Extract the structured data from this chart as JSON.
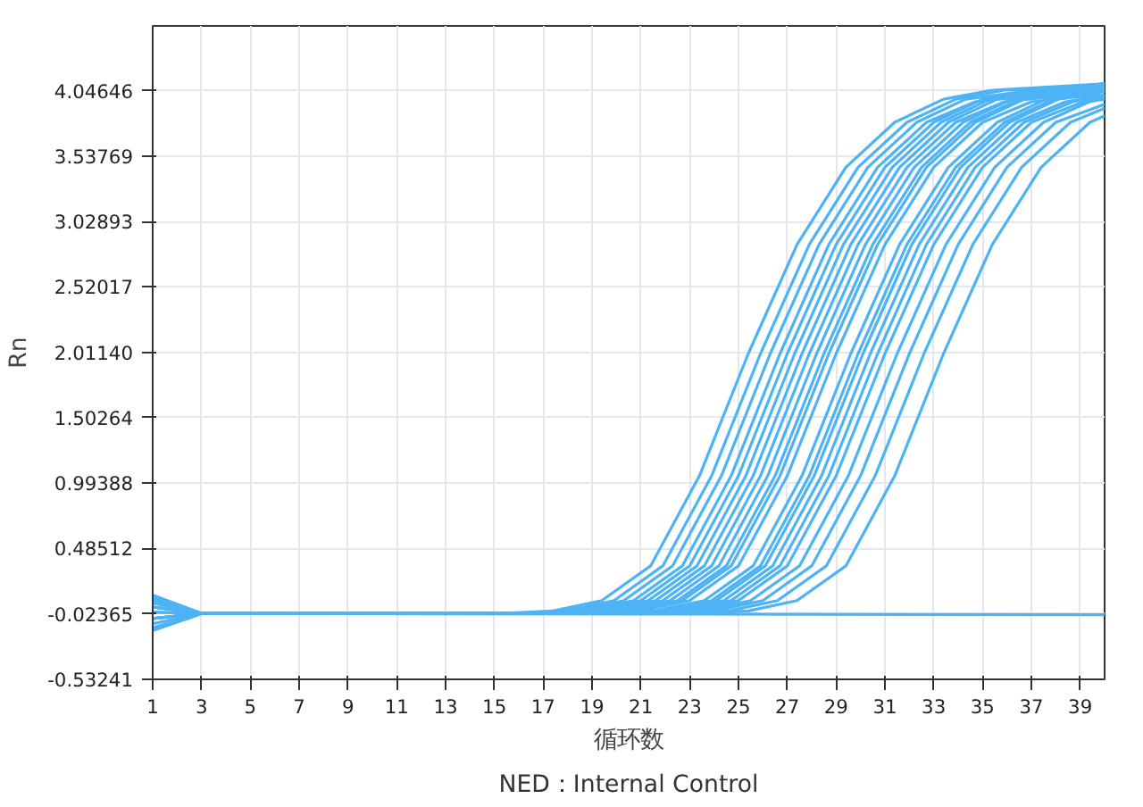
{
  "chart_data": {
    "type": "line",
    "xlabel": "循环数",
    "ylabel": "Rn",
    "annotations": [
      "NED：Internal Control"
    ],
    "xlim": [
      1,
      40
    ],
    "ylim": [
      -0.53241,
      4.55
    ],
    "xticks": [
      1,
      3,
      5,
      7,
      9,
      11,
      13,
      15,
      17,
      19,
      21,
      23,
      25,
      27,
      29,
      31,
      33,
      35,
      37,
      39
    ],
    "yticks": [
      -0.53241,
      -0.02365,
      0.48512,
      0.99388,
      1.50264,
      {
        "value": 2.0114,
        "label": "2.01140"
      },
      2.52017,
      3.02893,
      3.53769,
      4.04646
    ],
    "grid": true,
    "marker": "none",
    "line_style": "solid",
    "series": [
      {
        "color": "#4db3f5",
        "x": [
          1,
          3,
          15.4,
          17.4,
          19.4,
          21.4,
          23.4,
          25.4,
          27.4,
          29.4,
          31.4,
          33.4,
          35.4,
          40
        ],
        "values": [
          0.12,
          -0.02,
          -0.02,
          0.0,
          0.08,
          0.35,
          1.05,
          2.0,
          2.85,
          3.45,
          3.8,
          3.98,
          4.05,
          4.1
        ]
      },
      {
        "color": "#4db3f5",
        "x": [
          1,
          3,
          15.9,
          17.9,
          19.9,
          21.9,
          23.9,
          25.9,
          27.9,
          29.9,
          31.9,
          33.9,
          35.9,
          40
        ],
        "values": [
          0.12,
          -0.02,
          -0.02,
          0.0,
          0.08,
          0.35,
          1.05,
          2.0,
          2.85,
          3.45,
          3.8,
          3.98,
          4.05,
          4.07
        ]
      },
      {
        "color": "#4db3f5",
        "x": [
          1,
          3,
          16.3,
          18.3,
          20.3,
          22.3,
          24.3,
          26.3,
          28.3,
          30.3,
          32.3,
          34.3,
          36.3,
          40
        ],
        "values": [
          0.12,
          -0.02,
          -0.02,
          0.0,
          0.08,
          0.35,
          1.05,
          2.0,
          2.85,
          3.45,
          3.8,
          3.98,
          4.03,
          4.04
        ]
      },
      {
        "color": "#4db3f5",
        "x": [
          1,
          3,
          16.7,
          18.7,
          20.7,
          22.7,
          24.7,
          26.7,
          28.7,
          30.7,
          32.7,
          34.7,
          36.7,
          40
        ],
        "values": [
          0.12,
          -0.02,
          -0.02,
          0.0,
          0.08,
          0.35,
          1.05,
          2.0,
          2.85,
          3.45,
          3.8,
          3.96,
          4.0,
          4.01
        ]
      },
      {
        "color": "#4db3f5",
        "x": [
          1,
          3,
          17.0,
          19.0,
          21.0,
          23.0,
          25.0,
          27.0,
          29.0,
          31.0,
          33.0,
          35.0,
          37.0,
          40
        ],
        "values": [
          0.03,
          -0.02,
          -0.02,
          0.0,
          0.08,
          0.35,
          1.05,
          2.0,
          2.85,
          3.45,
          3.8,
          3.98,
          4.05,
          4.1
        ]
      },
      {
        "color": "#4db3f5",
        "x": [
          1,
          3,
          17.3,
          19.3,
          21.3,
          23.3,
          25.3,
          27.3,
          29.3,
          31.3,
          33.3,
          35.3,
          37.3,
          40
        ],
        "values": [
          0.03,
          -0.02,
          -0.02,
          0.0,
          0.08,
          0.35,
          1.05,
          2.0,
          2.85,
          3.45,
          3.8,
          3.98,
          4.05,
          4.07
        ]
      },
      {
        "color": "#4db3f5",
        "x": [
          1,
          3,
          17.6,
          19.6,
          21.6,
          23.6,
          25.6,
          27.6,
          29.6,
          31.6,
          33.6,
          35.6,
          37.6,
          40
        ],
        "values": [
          0.03,
          -0.02,
          -0.02,
          0.0,
          0.08,
          0.35,
          1.05,
          2.0,
          2.85,
          3.45,
          3.8,
          3.98,
          4.03,
          4.04
        ]
      },
      {
        "color": "#4db3f5",
        "x": [
          1,
          3,
          17.9,
          19.9,
          21.9,
          23.9,
          25.9,
          27.9,
          29.9,
          31.9,
          33.9,
          35.9,
          37.9,
          40
        ],
        "values": [
          0.03,
          -0.02,
          -0.02,
          0.0,
          0.08,
          0.35,
          1.05,
          2.0,
          2.85,
          3.45,
          3.8,
          3.96,
          4.0,
          4.01
        ]
      },
      {
        "color": "#4db3f5",
        "x": [
          1,
          3,
          18.2,
          20.2,
          22.2,
          24.2,
          26.2,
          28.2,
          30.2,
          32.2,
          34.2,
          36.2,
          38.2,
          40
        ],
        "values": [
          -0.06,
          -0.02,
          -0.02,
          0.0,
          0.08,
          0.35,
          1.05,
          2.0,
          2.85,
          3.45,
          3.8,
          3.98,
          4.05,
          4.1
        ]
      },
      {
        "color": "#4db3f5",
        "x": [
          1,
          3,
          18.5,
          20.5,
          22.5,
          24.5,
          26.5,
          28.5,
          30.5,
          32.5,
          34.5,
          36.5,
          38.5,
          40
        ],
        "values": [
          -0.06,
          -0.02,
          -0.02,
          0.0,
          0.08,
          0.35,
          1.05,
          2.0,
          2.85,
          3.45,
          3.8,
          3.98,
          4.05,
          4.07
        ]
      },
      {
        "color": "#4db3f5",
        "x": [
          1,
          3,
          18.7,
          20.7,
          22.7,
          24.7,
          26.7,
          28.7,
          30.7,
          32.7,
          34.7,
          36.7,
          38.7,
          40
        ],
        "values": [
          -0.06,
          -0.02,
          -0.02,
          0.0,
          0.08,
          0.35,
          1.05,
          2.0,
          2.85,
          3.45,
          3.8,
          3.98,
          4.03,
          4.04
        ]
      },
      {
        "color": "#4db3f5",
        "x": [
          1,
          3,
          19.0,
          21.0,
          23.0,
          25.0,
          27.0,
          29.0,
          31.0,
          33.0,
          35.0,
          37.0,
          39.0,
          40
        ],
        "values": [
          -0.06,
          -0.02,
          -0.02,
          0.0,
          0.08,
          0.35,
          1.05,
          2.0,
          2.85,
          3.45,
          3.8,
          3.96,
          4.0,
          4.01
        ]
      },
      {
        "color": "#4db3f5",
        "x": [
          1,
          3,
          19.6,
          21.6,
          23.6,
          25.6,
          27.6,
          29.6,
          31.6,
          33.6,
          35.6,
          37.6,
          39.6,
          40
        ],
        "values": [
          -0.15,
          -0.02,
          -0.02,
          0.0,
          0.08,
          0.35,
          1.05,
          2.0,
          2.85,
          3.45,
          3.8,
          3.98,
          4.08,
          4.1
        ]
      },
      {
        "color": "#4db3f5",
        "x": [
          1,
          3,
          19.9,
          21.9,
          23.9,
          25.9,
          27.9,
          29.9,
          31.9,
          33.9,
          35.9,
          37.9,
          39.9,
          40
        ],
        "values": [
          -0.15,
          -0.02,
          -0.02,
          0.0,
          0.08,
          0.35,
          1.05,
          2.0,
          2.85,
          3.45,
          3.8,
          3.98,
          4.06,
          4.07
        ]
      },
      {
        "color": "#4db3f5",
        "x": [
          1,
          3,
          20.1,
          22.1,
          24.1,
          26.1,
          28.1,
          30.1,
          32.1,
          34.1,
          36.1,
          38.1,
          40
        ],
        "values": [
          -0.15,
          -0.02,
          -0.02,
          0.0,
          0.08,
          0.35,
          1.05,
          2.0,
          2.85,
          3.45,
          3.8,
          3.98,
          4.04
        ]
      },
      {
        "color": "#4db3f5",
        "x": [
          1,
          3,
          20.4,
          22.4,
          24.4,
          26.4,
          28.4,
          30.4,
          32.4,
          34.4,
          36.4,
          38.4,
          40
        ],
        "values": [
          -0.15,
          -0.02,
          -0.02,
          0.0,
          0.08,
          0.35,
          1.05,
          2.0,
          2.85,
          3.45,
          3.8,
          3.96,
          4.01
        ]
      },
      {
        "color": "#4db3f5",
        "x": [
          1,
          3,
          20.7,
          22.7,
          24.7,
          26.7,
          28.7,
          30.7,
          32.7,
          34.7,
          36.7,
          38.7,
          40
        ],
        "values": [
          0.08,
          -0.02,
          -0.02,
          0.0,
          0.08,
          0.35,
          1.05,
          2.0,
          2.85,
          3.45,
          3.8,
          3.96,
          4.0
        ]
      },
      {
        "color": "#4db3f5",
        "x": [
          1,
          3,
          21.0,
          23.0,
          25.0,
          27.0,
          29.0,
          31.0,
          33.0,
          35.0,
          37.0,
          39.0,
          40
        ],
        "values": [
          -0.1,
          -0.02,
          -0.02,
          0.0,
          0.08,
          0.35,
          1.05,
          2.0,
          2.85,
          3.45,
          3.8,
          3.95,
          3.98
        ]
      },
      {
        "color": "#4db3f5",
        "x": [
          1,
          3,
          21.5,
          23.5,
          25.5,
          27.5,
          29.5,
          31.5,
          33.5,
          35.5,
          37.5,
          39.5,
          40
        ],
        "values": [
          -0.01,
          -0.02,
          -0.02,
          0.0,
          0.08,
          0.35,
          1.05,
          2.0,
          2.85,
          3.45,
          3.8,
          3.97,
          3.99
        ]
      },
      {
        "color": "#4db3f5",
        "x": [
          1,
          3,
          22.0,
          24.0,
          26.0,
          28.0,
          30.0,
          32.0,
          34.0,
          36.0,
          38.0,
          40.0
        ],
        "values": [
          0.1,
          -0.02,
          -0.02,
          0.0,
          0.08,
          0.35,
          1.05,
          2.0,
          2.85,
          3.45,
          3.8,
          3.94
        ]
      },
      {
        "color": "#4db3f5",
        "x": [
          1,
          3,
          22.6,
          24.6,
          26.6,
          28.6,
          30.6,
          32.6,
          34.6,
          36.6,
          38.6,
          40
        ],
        "values": [
          -0.13,
          -0.02,
          -0.02,
          0.0,
          0.08,
          0.35,
          1.05,
          2.0,
          2.85,
          3.45,
          3.8,
          3.91
        ]
      },
      {
        "color": "#4db3f5",
        "x": [
          1,
          3,
          23.4,
          25.4,
          27.4,
          29.4,
          31.4,
          33.4,
          35.4,
          37.4,
          39.4,
          40
        ],
        "values": [
          0.06,
          -0.02,
          -0.02,
          0.0,
          0.08,
          0.35,
          1.05,
          2.0,
          2.85,
          3.45,
          3.8,
          3.85
        ]
      },
      {
        "color": "#4db3f5",
        "x": [
          1,
          3,
          40
        ],
        "values": [
          -0.01,
          -0.02,
          -0.03
        ]
      }
    ]
  }
}
